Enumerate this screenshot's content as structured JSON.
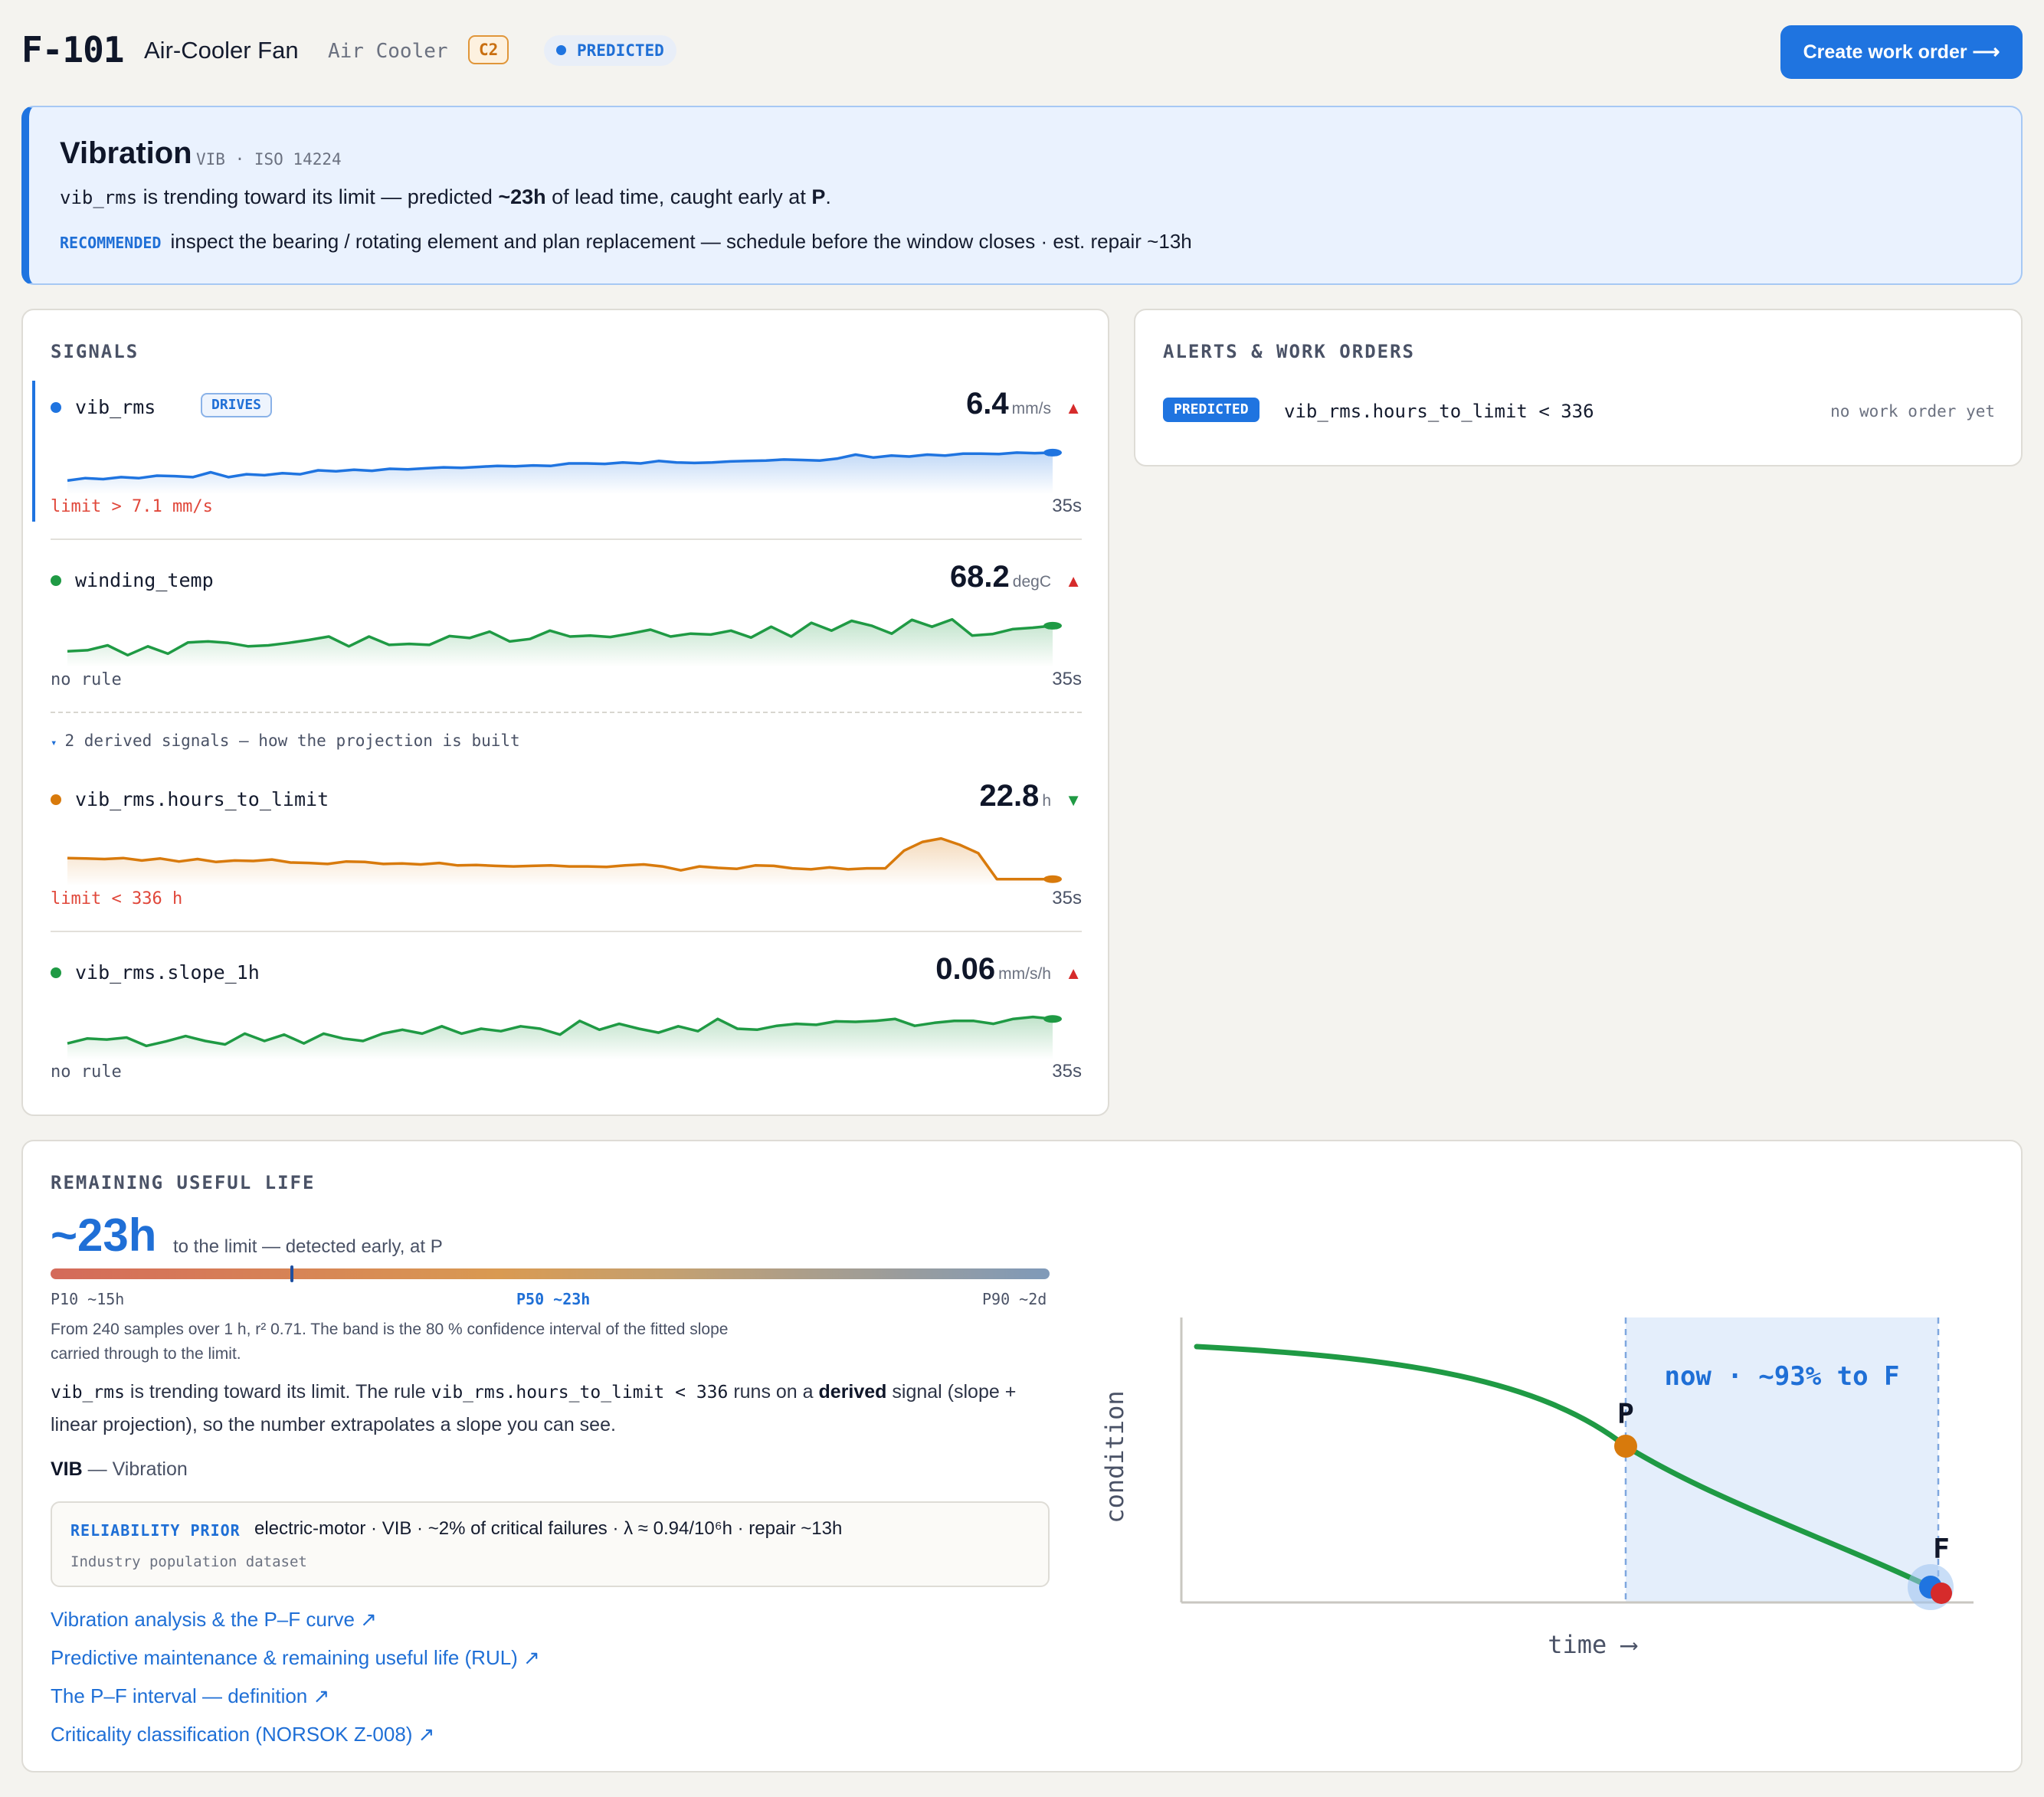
{
  "header": {
    "asset_id": "F-101",
    "asset_name": "Air-Cooler Fan",
    "asset_type": "Air Cooler",
    "criticality": "C2",
    "status": "PREDICTED",
    "cta_label": "Create work order ⟶"
  },
  "banner": {
    "title": "Vibration",
    "meta": "VIB · ISO 14224",
    "signal": "vib_rms",
    "line_a": " is trending toward its limit — predicted ",
    "lead": "~23h",
    "line_b": " of lead time, caught early at ",
    "point": "P",
    "line_c": ".",
    "rec_tag": "RECOMMENDED",
    "rec_text": "inspect the bearing / rotating element and plan replacement — schedule before the window closes · est. repair ~13h"
  },
  "signals": {
    "title": "SIGNALS",
    "derived_toggle": "2 derived signals — how the projection is built",
    "items": [
      {
        "name": "vib_rms",
        "badge": "DRIVES",
        "value": "6.4",
        "unit": "mm/s",
        "trend": "▲",
        "rule": "limit > 7.1 mm/s",
        "age": "35s",
        "color": "#1f74e0",
        "series": [
          0.15,
          0.2,
          0.18,
          0.22,
          0.2,
          0.25,
          0.24,
          0.22,
          0.32,
          0.22,
          0.28,
          0.26,
          0.3,
          0.28,
          0.36,
          0.34,
          0.37,
          0.35,
          0.39,
          0.38,
          0.4,
          0.42,
          0.41,
          0.43,
          0.45,
          0.44,
          0.46,
          0.45,
          0.5,
          0.5,
          0.49,
          0.52,
          0.5,
          0.55,
          0.52,
          0.51,
          0.52,
          0.54,
          0.55,
          0.56,
          0.58,
          0.57,
          0.56,
          0.6,
          0.68,
          0.62,
          0.66,
          0.64,
          0.68,
          0.66,
          0.7,
          0.7,
          0.69,
          0.72,
          0.71,
          0.72
        ]
      },
      {
        "name": "winding_temp",
        "value": "68.2",
        "unit": "degC",
        "trend": "▲",
        "rule": "no rule",
        "age": "35s",
        "color": "#1f9a44",
        "series": [
          0.2,
          0.22,
          0.32,
          0.12,
          0.3,
          0.15,
          0.38,
          0.4,
          0.37,
          0.3,
          0.32,
          0.37,
          0.43,
          0.5,
          0.3,
          0.5,
          0.33,
          0.35,
          0.33,
          0.51,
          0.47,
          0.6,
          0.4,
          0.45,
          0.62,
          0.5,
          0.52,
          0.49,
          0.56,
          0.64,
          0.5,
          0.56,
          0.54,
          0.62,
          0.48,
          0.7,
          0.5,
          0.78,
          0.62,
          0.82,
          0.72,
          0.56,
          0.84,
          0.7,
          0.85,
          0.52,
          0.55,
          0.65,
          0.68,
          0.72
        ]
      },
      {
        "name": "vib_rms.hours_to_limit",
        "value": "22.8",
        "unit": "h",
        "trend": "▼",
        "rule": "limit < 336 h",
        "age": "35s",
        "color": "#d87a0c",
        "series": [
          0.45,
          0.44,
          0.43,
          0.45,
          0.4,
          0.44,
          0.38,
          0.43,
          0.37,
          0.4,
          0.39,
          0.42,
          0.36,
          0.35,
          0.33,
          0.38,
          0.37,
          0.33,
          0.34,
          0.32,
          0.35,
          0.3,
          0.31,
          0.29,
          0.28,
          0.29,
          0.3,
          0.28,
          0.28,
          0.27,
          0.3,
          0.32,
          0.28,
          0.2,
          0.28,
          0.25,
          0.23,
          0.3,
          0.29,
          0.24,
          0.22,
          0.26,
          0.22,
          0.24,
          0.24,
          0.6,
          0.78,
          0.85,
          0.72,
          0.55,
          0.02,
          0.02,
          0.02,
          0.02
        ]
      },
      {
        "name": "vib_rms.slope_1h",
        "value": "0.06",
        "unit": "mm/s/h",
        "trend": "▲",
        "rule": "no rule",
        "age": "35s",
        "color": "#1f9a44",
        "series": [
          0.2,
          0.3,
          0.28,
          0.32,
          0.15,
          0.24,
          0.35,
          0.25,
          0.18,
          0.4,
          0.25,
          0.38,
          0.2,
          0.4,
          0.3,
          0.25,
          0.4,
          0.48,
          0.4,
          0.55,
          0.4,
          0.5,
          0.45,
          0.55,
          0.5,
          0.38,
          0.66,
          0.48,
          0.6,
          0.5,
          0.42,
          0.55,
          0.45,
          0.7,
          0.5,
          0.48,
          0.56,
          0.6,
          0.58,
          0.65,
          0.64,
          0.66,
          0.7,
          0.56,
          0.62,
          0.66,
          0.66,
          0.6,
          0.7,
          0.74,
          0.7
        ]
      }
    ]
  },
  "alerts": {
    "title": "ALERTS & WORK ORDERS",
    "items": [
      {
        "tag": "PREDICTED",
        "rule": "vib_rms.hours_to_limit < 336",
        "work_order": "no work order yet"
      }
    ]
  },
  "rul": {
    "title": "REMAINING USEFUL LIFE",
    "value": "~23h",
    "subtitle": "to the limit — detected early, at P",
    "p10": "P10 ~15h",
    "p50": "P50 ~23h",
    "p90": "P90 ~2d",
    "p50_fraction": 0.24,
    "note": "From 240 samples over 1 h, r² 0.71. The band is the 80 % confidence interval of the fitted slope carried through to the limit.",
    "para_signal": "vib_rms",
    "para_a": " is trending toward its limit. The rule ",
    "para_rule": "vib_rms.hours_to_limit < 336",
    "para_b": " runs on a ",
    "para_derived": "derived",
    "para_c": " signal (slope + linear projection), so the number extrapolates a slope you can see.",
    "vib_code": "VIB",
    "vib_text": " — Vibration",
    "prior_tag": "RELIABILITY PRIOR",
    "prior_text": "electric-motor · VIB · ~2% of critical failures · λ ≈ 0.94/10⁶h · repair ~13h",
    "prior_source": "Industry population dataset",
    "links": [
      "Vibration analysis & the P–F curve ↗",
      "Predictive maintenance & remaining useful life (RUL) ↗",
      "The P–F interval — definition ↗",
      "Criticality classification (NORSOK Z-008) ↗"
    ],
    "pf_chart": {
      "ylabel": "condition",
      "xlabel": "time ⟶",
      "p_label": "P",
      "f_label": "F",
      "now_label": "now · ~93% to F"
    }
  }
}
